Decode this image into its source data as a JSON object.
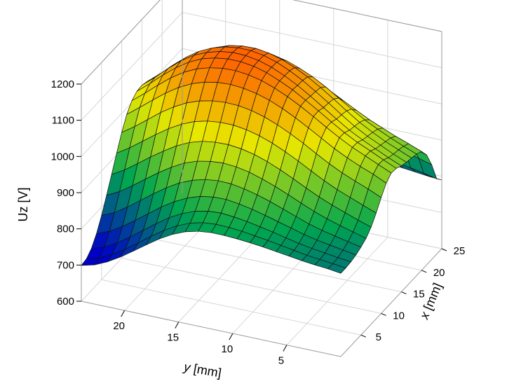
{
  "chart_data": {
    "type": "surface",
    "xlabel": "x [mm]",
    "ylabel": "y [mm]",
    "zlabel": "Uz [V]",
    "x_range": [
      0,
      25
    ],
    "y_range": [
      0,
      24
    ],
    "z_range": [
      600,
      1200
    ],
    "x_ticks": [
      5,
      10,
      15,
      20,
      25
    ],
    "y_ticks": [
      5,
      10,
      15,
      20
    ],
    "z_ticks": [
      600,
      700,
      800,
      900,
      1000,
      1100,
      1200
    ],
    "grid": true,
    "colormap": [
      "#0000c8",
      "#00a650",
      "#e8e800",
      "#ff5a00"
    ],
    "x": [
      0,
      1.25,
      2.5,
      3.75,
      5,
      6.25,
      7.5,
      8.75,
      10,
      11.25,
      12.5,
      13.75,
      15,
      16.25,
      17.5,
      18.75,
      20,
      21.25,
      22.5,
      23.75,
      25
    ],
    "y": [
      0,
      1.2,
      2.4,
      3.6,
      4.8,
      6,
      7.2,
      8.4,
      9.6,
      10.8,
      12,
      13.2,
      14.4,
      15.6,
      16.8,
      18,
      19.2,
      20.4,
      21.6,
      22.8,
      24
    ],
    "z": [
      [
        830,
        830,
        832,
        836,
        843,
        852,
        868,
        892,
        920,
        945,
        958,
        956,
        948,
        943,
        940,
        936,
        928,
        904,
        862,
        808,
        790
      ],
      [
        835,
        834,
        836,
        842,
        850,
        862,
        880,
        906,
        936,
        962,
        974,
        972,
        963,
        958,
        955,
        950,
        942,
        916,
        872,
        816,
        792
      ],
      [
        838,
        838,
        841,
        848,
        858,
        872,
        893,
        920,
        950,
        976,
        990,
        989,
        980,
        975,
        970,
        965,
        955,
        928,
        880,
        823,
        796
      ],
      [
        842,
        842,
        846,
        854,
        866,
        883,
        906,
        934,
        965,
        992,
        1006,
        1005,
        997,
        992,
        988,
        982,
        970,
        940,
        887,
        830,
        800
      ],
      [
        847,
        848,
        852,
        862,
        876,
        896,
        921,
        951,
        983,
        1010,
        1025,
        1024,
        1016,
        1012,
        1008,
        1000,
        985,
        952,
        895,
        838,
        806
      ],
      [
        852,
        854,
        860,
        872,
        889,
        911,
        938,
        970,
        1003,
        1031,
        1046,
        1046,
        1039,
        1036,
        1032,
        1022,
        1003,
        966,
        905,
        846,
        812
      ],
      [
        857,
        860,
        868,
        882,
        902,
        927,
        956,
        990,
        1024,
        1052,
        1068,
        1069,
        1063,
        1061,
        1057,
        1045,
        1022,
        982,
        916,
        854,
        818
      ],
      [
        861,
        865,
        875,
        892,
        915,
        942,
        973,
        1008,
        1043,
        1072,
        1089,
        1091,
        1087,
        1085,
        1081,
        1068,
        1041,
        997,
        926,
        861,
        823
      ],
      [
        864,
        870,
        882,
        901,
        926,
        955,
        988,
        1024,
        1060,
        1090,
        1108,
        1112,
        1109,
        1108,
        1103,
        1088,
        1058,
        1010,
        935,
        866,
        826
      ],
      [
        866,
        873,
        887,
        908,
        935,
        966,
        1000,
        1037,
        1074,
        1105,
        1124,
        1129,
        1128,
        1127,
        1121,
        1104,
        1072,
        1020,
        941,
        870,
        828
      ],
      [
        866,
        874,
        890,
        913,
        941,
        973,
        1008,
        1046,
        1084,
        1116,
        1137,
        1144,
        1144,
        1143,
        1136,
        1117,
        1082,
        1027,
        945,
        872,
        829
      ],
      [
        862,
        871,
        888,
        912,
        942,
        976,
        1012,
        1051,
        1090,
        1123,
        1145,
        1154,
        1155,
        1154,
        1146,
        1125,
        1087,
        1030,
        946,
        871,
        828
      ],
      [
        853,
        862,
        880,
        906,
        938,
        973,
        1011,
        1051,
        1091,
        1126,
        1149,
        1159,
        1161,
        1160,
        1151,
        1128,
        1088,
        1029,
        943,
        867,
        824
      ],
      [
        838,
        847,
        866,
        894,
        928,
        966,
        1006,
        1047,
        1088,
        1124,
        1148,
        1159,
        1162,
        1160,
        1150,
        1125,
        1083,
        1022,
        936,
        860,
        817
      ],
      [
        818,
        827,
        847,
        876,
        913,
        953,
        995,
        1038,
        1080,
        1117,
        1142,
        1154,
        1157,
        1155,
        1144,
        1117,
        1073,
        1010,
        924,
        850,
        808
      ],
      [
        794,
        803,
        823,
        854,
        892,
        934,
        978,
        1023,
        1067,
        1105,
        1131,
        1144,
        1147,
        1144,
        1131,
        1103,
        1057,
        994,
        909,
        837,
        796
      ],
      [
        769,
        777,
        797,
        828,
        868,
        911,
        956,
        1003,
        1048,
        1087,
        1114,
        1127,
        1131,
        1127,
        1113,
        1083,
        1036,
        973,
        890,
        821,
        782
      ],
      [
        745,
        752,
        771,
        802,
        842,
        886,
        932,
        979,
        1025,
        1064,
        1091,
        1104,
        1108,
        1103,
        1089,
        1059,
        1013,
        951,
        870,
        804,
        768
      ],
      [
        724,
        730,
        747,
        777,
        816,
        860,
        906,
        953,
        998,
        1037,
        1063,
        1076,
        1079,
        1074,
        1060,
        1032,
        988,
        929,
        851,
        789,
        755
      ],
      [
        708,
        712,
        728,
        756,
        793,
        836,
        881,
        927,
        971,
        1009,
        1033,
        1045,
        1047,
        1042,
        1030,
        1005,
        965,
        910,
        837,
        778,
        746
      ],
      [
        699,
        702,
        716,
        742,
        777,
        818,
        861,
        905,
        947,
        982,
        1005,
        1016,
        1018,
        1013,
        1002,
        980,
        944,
        894,
        826,
        771,
        741
      ]
    ]
  }
}
